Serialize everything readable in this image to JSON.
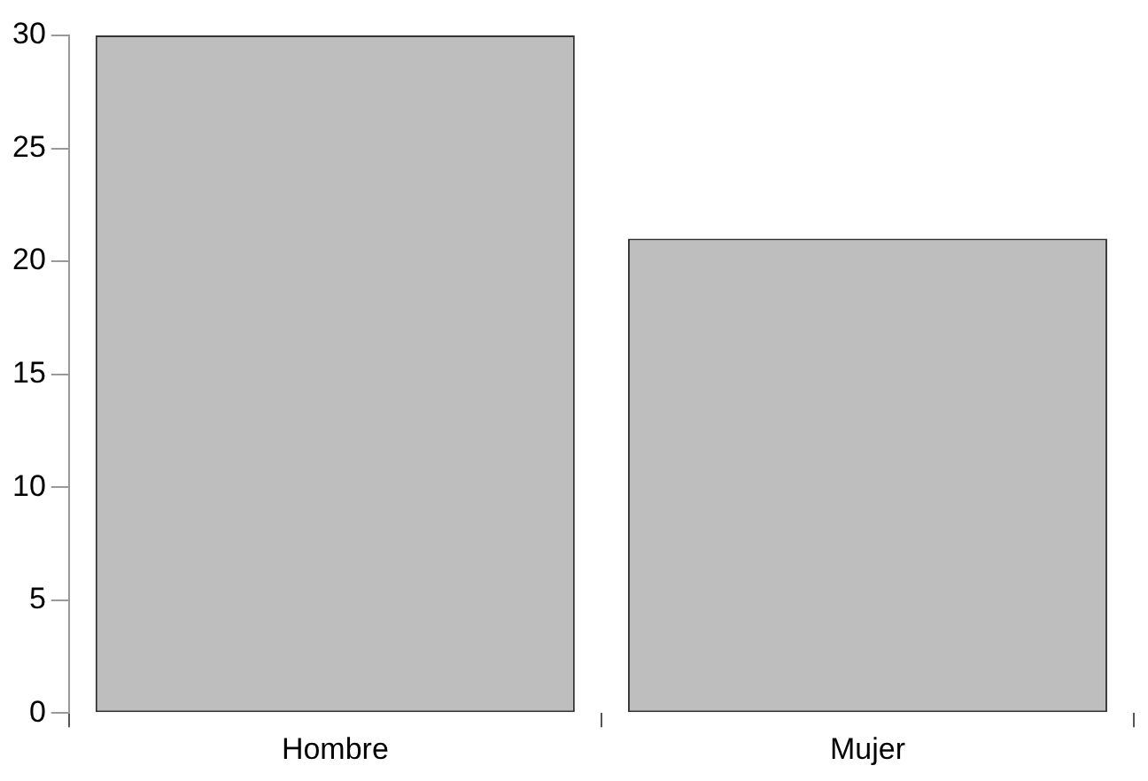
{
  "chart_data": {
    "type": "bar",
    "categories": [
      "Hombre",
      "Mujer"
    ],
    "values": [
      30,
      21
    ],
    "color": "#bebebe",
    "ylim": [
      0,
      30
    ],
    "yticks": [
      0,
      5,
      10,
      15,
      20,
      25,
      30
    ],
    "grid": false,
    "legend": false
  }
}
